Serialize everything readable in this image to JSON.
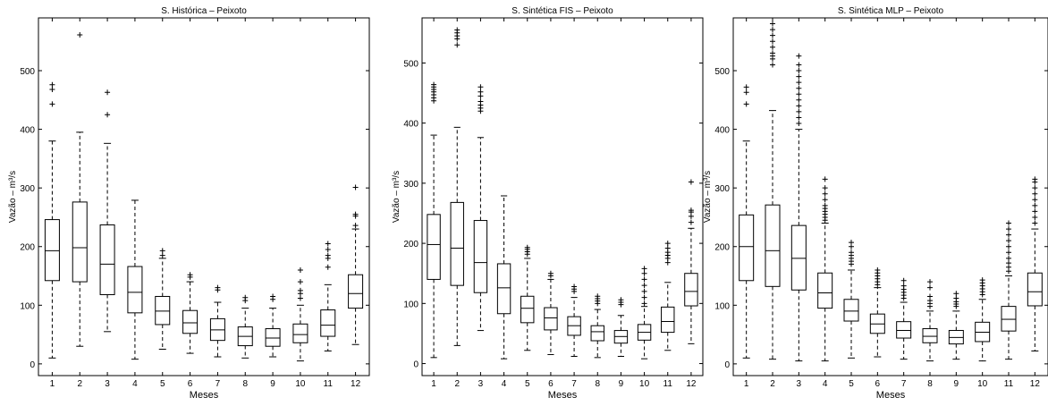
{
  "chart_data": [
    {
      "type": "box",
      "title": "S. Histórica – Peixoto",
      "xlabel": "Meses",
      "ylabel": "Vazão – m³/s",
      "ylim": [
        -20,
        590
      ],
      "yticks": [
        0,
        100,
        200,
        300,
        400,
        500
      ],
      "categories": [
        "1",
        "2",
        "3",
        "4",
        "5",
        "6",
        "7",
        "8",
        "9",
        "10",
        "11",
        "12"
      ],
      "boxes": [
        {
          "min": 10,
          "q1": 142,
          "median": 193,
          "q3": 246,
          "max": 380,
          "outliers": [
            443,
            468,
            476
          ]
        },
        {
          "min": 30,
          "q1": 140,
          "median": 198,
          "q3": 276,
          "max": 395,
          "outliers": [
            561
          ]
        },
        {
          "min": 55,
          "q1": 118,
          "median": 170,
          "q3": 237,
          "max": 376,
          "outliers": [
            425,
            463
          ]
        },
        {
          "min": 8,
          "q1": 87,
          "median": 122,
          "q3": 166,
          "max": 279,
          "outliers": []
        },
        {
          "min": 25,
          "q1": 67,
          "median": 90,
          "q3": 115,
          "max": 180,
          "outliers": [
            185,
            193
          ]
        },
        {
          "min": 18,
          "q1": 52,
          "median": 70,
          "q3": 91,
          "max": 140,
          "outliers": [
            148,
            152
          ]
        },
        {
          "min": 12,
          "q1": 40,
          "median": 58,
          "q3": 77,
          "max": 105,
          "outliers": [
            126,
            130
          ]
        },
        {
          "min": 10,
          "q1": 31,
          "median": 47,
          "q3": 63,
          "max": 95,
          "outliers": [
            108,
            113
          ]
        },
        {
          "min": 12,
          "q1": 30,
          "median": 44,
          "q3": 60,
          "max": 95,
          "outliers": [
            110,
            115
          ]
        },
        {
          "min": 5,
          "q1": 36,
          "median": 50,
          "q3": 68,
          "max": 100,
          "outliers": [
            112,
            120,
            125,
            140,
            160
          ]
        },
        {
          "min": 22,
          "q1": 47,
          "median": 66,
          "q3": 92,
          "max": 135,
          "outliers": [
            165,
            180,
            185,
            195,
            205
          ]
        },
        {
          "min": 33,
          "q1": 95,
          "median": 120,
          "q3": 152,
          "max": 230,
          "outliers": [
            236,
            252,
            255,
            301
          ]
        }
      ]
    },
    {
      "type": "box",
      "title": "S. Sintética FIS – Peixoto",
      "xlabel": "Meses",
      "ylabel": "Vazão – m³/s",
      "ylim": [
        -20,
        575
      ],
      "yticks": [
        0,
        100,
        200,
        300,
        400,
        500
      ],
      "categories": [
        "1",
        "2",
        "3",
        "4",
        "5",
        "6",
        "7",
        "8",
        "9",
        "10",
        "11",
        "12"
      ],
      "boxes": [
        {
          "min": 10,
          "q1": 140,
          "median": 198,
          "q3": 248,
          "max": 380,
          "outliers": [
            437,
            442,
            447,
            452,
            456,
            460,
            464
          ]
        },
        {
          "min": 30,
          "q1": 130,
          "median": 192,
          "q3": 268,
          "max": 393,
          "outliers": [
            530,
            540,
            545,
            550,
            555
          ]
        },
        {
          "min": 55,
          "q1": 118,
          "median": 168,
          "q3": 238,
          "max": 376,
          "outliers": [
            420,
            425,
            430,
            436,
            445,
            452,
            460
          ]
        },
        {
          "min": 8,
          "q1": 83,
          "median": 126,
          "q3": 166,
          "max": 279,
          "outliers": []
        },
        {
          "min": 22,
          "q1": 68,
          "median": 92,
          "q3": 112,
          "max": 175,
          "outliers": [
            182,
            186,
            190,
            193
          ]
        },
        {
          "min": 15,
          "q1": 56,
          "median": 76,
          "q3": 93,
          "max": 140,
          "outliers": [
            146,
            150
          ]
        },
        {
          "min": 12,
          "q1": 47,
          "median": 63,
          "q3": 78,
          "max": 110,
          "outliers": [
            120,
            124,
            128
          ]
        },
        {
          "min": 10,
          "q1": 38,
          "median": 53,
          "q3": 63,
          "max": 90,
          "outliers": [
            100,
            104,
            108,
            112
          ]
        },
        {
          "min": 12,
          "q1": 34,
          "median": 45,
          "q3": 55,
          "max": 80,
          "outliers": [
            98,
            102,
            106
          ]
        },
        {
          "min": 8,
          "q1": 39,
          "median": 52,
          "q3": 65,
          "max": 95,
          "outliers": [
            100,
            110,
            120,
            130,
            140,
            150,
            158
          ]
        },
        {
          "min": 22,
          "q1": 52,
          "median": 70,
          "q3": 94,
          "max": 135,
          "outliers": [
            168,
            175,
            180,
            185,
            192,
            200
          ]
        },
        {
          "min": 33,
          "q1": 96,
          "median": 120,
          "q3": 150,
          "max": 225,
          "outliers": [
            235,
            245,
            252,
            255,
            302
          ]
        }
      ]
    },
    {
      "type": "box",
      "title": "S. Sintética MLP – Peixoto",
      "xlabel": "Meses",
      "ylabel": "Vazão – m³/s",
      "ylim": [
        -20,
        590
      ],
      "yticks": [
        0,
        100,
        200,
        300,
        400,
        500
      ],
      "categories": [
        "1",
        "2",
        "3",
        "4",
        "5",
        "6",
        "7",
        "8",
        "9",
        "10",
        "11",
        "12"
      ],
      "boxes": [
        {
          "min": 10,
          "q1": 142,
          "median": 200,
          "q3": 254,
          "max": 380,
          "outliers": [
            443,
            463,
            472
          ]
        },
        {
          "min": 8,
          "q1": 132,
          "median": 193,
          "q3": 271,
          "max": 432,
          "outliers": [
            510,
            520,
            525,
            530,
            540,
            550,
            560,
            570,
            580
          ]
        },
        {
          "min": 5,
          "q1": 126,
          "median": 180,
          "q3": 236,
          "max": 400,
          "outliers": [
            410,
            420,
            430,
            440,
            450,
            460,
            470,
            480,
            490,
            500,
            510,
            525
          ]
        },
        {
          "min": 5,
          "q1": 95,
          "median": 121,
          "q3": 155,
          "max": 240,
          "outliers": [
            245,
            250,
            255,
            260,
            265,
            270,
            280,
            290,
            300,
            315
          ]
        },
        {
          "min": 10,
          "q1": 73,
          "median": 90,
          "q3": 110,
          "max": 160,
          "outliers": [
            170,
            175,
            180,
            185,
            190,
            200,
            207
          ]
        },
        {
          "min": 12,
          "q1": 52,
          "median": 68,
          "q3": 85,
          "max": 130,
          "outliers": [
            135,
            140,
            145,
            150,
            155,
            160
          ]
        },
        {
          "min": 8,
          "q1": 44,
          "median": 57,
          "q3": 72,
          "max": 105,
          "outliers": [
            112,
            117,
            122,
            127,
            133,
            142
          ]
        },
        {
          "min": 5,
          "q1": 36,
          "median": 47,
          "q3": 60,
          "max": 90,
          "outliers": [
            98,
            103,
            108,
            115,
            130,
            140
          ]
        },
        {
          "min": 8,
          "q1": 34,
          "median": 45,
          "q3": 57,
          "max": 90,
          "outliers": [
            98,
            102,
            106,
            112,
            120
          ]
        },
        {
          "min": 5,
          "q1": 38,
          "median": 54,
          "q3": 71,
          "max": 110,
          "outliers": [
            118,
            123,
            128,
            133,
            138,
            143
          ]
        },
        {
          "min": 8,
          "q1": 56,
          "median": 76,
          "q3": 98,
          "max": 150,
          "outliers": [
            158,
            165,
            172,
            180,
            190,
            200,
            210,
            220,
            230,
            240
          ]
        },
        {
          "min": 22,
          "q1": 99,
          "median": 123,
          "q3": 155,
          "max": 230,
          "outliers": [
            240,
            250,
            260,
            270,
            280,
            290,
            300,
            310,
            315
          ]
        }
      ]
    }
  ]
}
